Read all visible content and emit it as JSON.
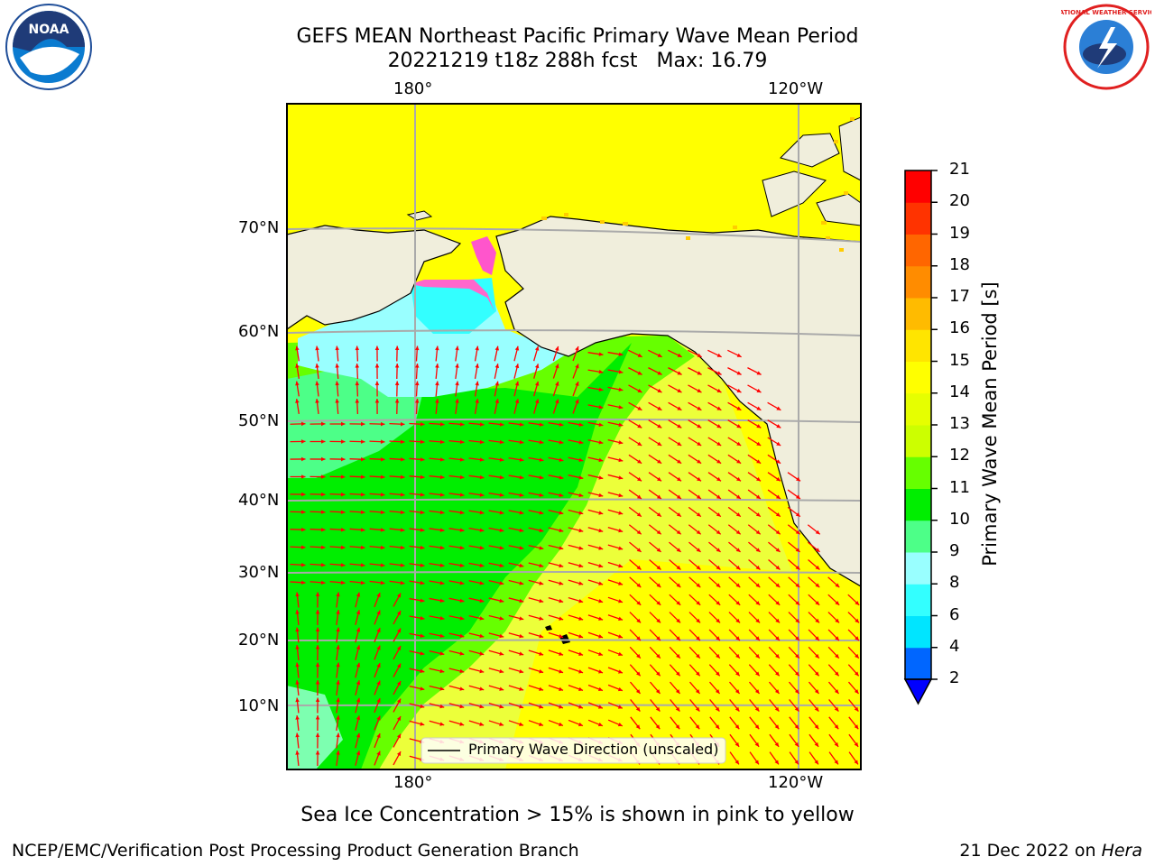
{
  "title": "GEFS MEAN Northeast Pacific Primary Wave Mean Period",
  "subtitle_run": "20221219 t18z 288h fcst",
  "subtitle_max": "Max: 16.79",
  "lon_ticks": [
    "180°",
    "120°W"
  ],
  "lat_ticks": [
    "70°N",
    "60°N",
    "50°N",
    "40°N",
    "30°N",
    "20°N",
    "10°N"
  ],
  "colorbar": {
    "label": "Primary Wave Mean Period [s]",
    "ticks": [
      "2",
      "4",
      "6",
      "8",
      "9",
      "10",
      "11",
      "12",
      "13",
      "14",
      "15",
      "16",
      "17",
      "18",
      "19",
      "20",
      "21"
    ],
    "colors": [
      "#0066ff",
      "#00e5ff",
      "#33ffff",
      "#99ffff",
      "#4dff88",
      "#00ee00",
      "#66ff00",
      "#ccff00",
      "#e6ff00",
      "#ffff00",
      "#ffe500",
      "#ffbb00",
      "#ff8c00",
      "#ff6600",
      "#ff3300",
      "#ff0000"
    ],
    "extend_color": "#0000ff"
  },
  "legend": {
    "label": "Primary Wave Direction (unscaled)"
  },
  "note": "Sea Ice Concentration > 15% is shown in pink to yellow",
  "footer_left": "NCEP/EMC/Verification Post Processing Product Generation Branch",
  "footer_date": "21 Dec 2022 on",
  "footer_host": "Hera",
  "logos": {
    "left": "NOAA",
    "right": "NATIONAL WEATHER SERVICE"
  },
  "colors": {
    "land": "#f0eedc",
    "arrow": "#ff0000",
    "ocean_low": "#00ee00",
    "ocean_high": "#ffff00"
  }
}
